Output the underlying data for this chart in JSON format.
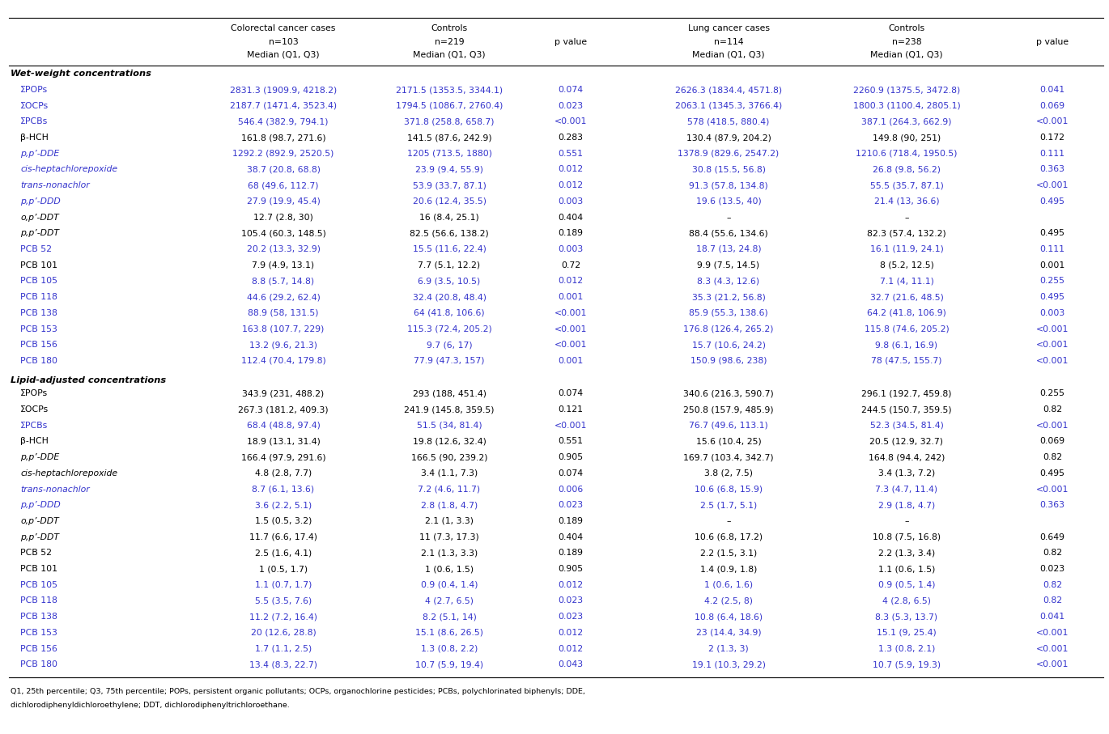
{
  "section1_header": "Wet-weight concentrations",
  "section2_header": "Lipid-adjusted concentrations",
  "col_headers": {
    "colorectal_line1": "Colorectal cancer cases",
    "colorectal_n": "n=103",
    "colorectal_median": "Median (Q1, Q3)",
    "controls1_line1": "Controls",
    "controls1_n": "n=219",
    "controls1_median": "Median (Q1, Q3)",
    "pval_header": "p value",
    "lung_line1": "Lung cancer cases",
    "lung_n": "n=114",
    "lung_median": "Median (Q1, Q3)",
    "controls2_line1": "Controls",
    "controls2_n": "n=238",
    "controls2_median": "Median (Q1, Q3)"
  },
  "rows_sec1": [
    {
      "label": "ΣPOPs",
      "italic": false,
      "color": "blue",
      "c1": "2831.3 (1909.9, 4218.2)",
      "c2": "2171.5 (1353.5, 3344.1)",
      "p1": "0.074",
      "c3": "2626.3 (1834.4, 4571.8)",
      "c4": "2260.9 (1375.5, 3472.8)",
      "p2": "0.041"
    },
    {
      "label": "ΣOCPs",
      "italic": false,
      "color": "blue",
      "c1": "2187.7 (1471.4, 3523.4)",
      "c2": "1794.5 (1086.7, 2760.4)",
      "p1": "0.023",
      "c3": "2063.1 (1345.3, 3766.4)",
      "c4": "1800.3 (1100.4, 2805.1)",
      "p2": "0.069"
    },
    {
      "label": "ΣPCBs",
      "italic": false,
      "color": "blue",
      "c1": "546.4 (382.9, 794.1)",
      "c2": "371.8 (258.8, 658.7)",
      "p1": "<0.001",
      "c3": "578 (418.5, 880.4)",
      "c4": "387.1 (264.3, 662.9)",
      "p2": "<0.001"
    },
    {
      "label": "β-HCH",
      "italic": false,
      "color": "black",
      "c1": "161.8 (98.7, 271.6)",
      "c2": "141.5 (87.6, 242.9)",
      "p1": "0.283",
      "c3": "130.4 (87.9, 204.2)",
      "c4": "149.8 (90, 251)",
      "p2": "0.172"
    },
    {
      "label": "p,p’-DDE",
      "italic": true,
      "color": "blue",
      "c1": "1292.2 (892.9, 2520.5)",
      "c2": "1205 (713.5, 1880)",
      "p1": "0.551",
      "c3": "1378.9 (829.6, 2547.2)",
      "c4": "1210.6 (718.4, 1950.5)",
      "p2": "0.111"
    },
    {
      "label": "cis-heptachlorepoxide",
      "italic": true,
      "color": "blue",
      "c1": "38.7 (20.8, 68.8)",
      "c2": "23.9 (9.4, 55.9)",
      "p1": "0.012",
      "c3": "30.8 (15.5, 56.8)",
      "c4": "26.8 (9.8, 56.2)",
      "p2": "0.363"
    },
    {
      "label": "trans-nonachlor",
      "italic": true,
      "color": "blue",
      "c1": "68 (49.6, 112.7)",
      "c2": "53.9 (33.7, 87.1)",
      "p1": "0.012",
      "c3": "91.3 (57.8, 134.8)",
      "c4": "55.5 (35.7, 87.1)",
      "p2": "<0.001"
    },
    {
      "label": "p,p’-DDD",
      "italic": true,
      "color": "blue",
      "c1": "27.9 (19.9, 45.4)",
      "c2": "20.6 (12.4, 35.5)",
      "p1": "0.003",
      "c3": "19.6 (13.5, 40)",
      "c4": "21.4 (13, 36.6)",
      "p2": "0.495"
    },
    {
      "label": "o,p’-DDT",
      "italic": true,
      "color": "black",
      "c1": "12.7 (2.8, 30)",
      "c2": "16 (8.4, 25.1)",
      "p1": "0.404",
      "c3": "–",
      "c4": "–",
      "p2": ""
    },
    {
      "label": "p,p’-DDT",
      "italic": true,
      "color": "black",
      "c1": "105.4 (60.3, 148.5)",
      "c2": "82.5 (56.6, 138.2)",
      "p1": "0.189",
      "c3": "88.4 (55.6, 134.6)",
      "c4": "82.3 (57.4, 132.2)",
      "p2": "0.495"
    },
    {
      "label": "PCB 52",
      "italic": false,
      "color": "blue",
      "c1": "20.2 (13.3, 32.9)",
      "c2": "15.5 (11.6, 22.4)",
      "p1": "0.003",
      "c3": "18.7 (13, 24.8)",
      "c4": "16.1 (11.9, 24.1)",
      "p2": "0.111"
    },
    {
      "label": "PCB 101",
      "italic": false,
      "color": "black",
      "c1": "7.9 (4.9, 13.1)",
      "c2": "7.7 (5.1, 12.2)",
      "p1": "0.72",
      "c3": "9.9 (7.5, 14.5)",
      "c4": "8 (5.2, 12.5)",
      "p2": "0.001"
    },
    {
      "label": "PCB 105",
      "italic": false,
      "color": "blue",
      "c1": "8.8 (5.7, 14.8)",
      "c2": "6.9 (3.5, 10.5)",
      "p1": "0.012",
      "c3": "8.3 (4.3, 12.6)",
      "c4": "7.1 (4, 11.1)",
      "p2": "0.255"
    },
    {
      "label": "PCB 118",
      "italic": false,
      "color": "blue",
      "c1": "44.6 (29.2, 62.4)",
      "c2": "32.4 (20.8, 48.4)",
      "p1": "0.001",
      "c3": "35.3 (21.2, 56.8)",
      "c4": "32.7 (21.6, 48.5)",
      "p2": "0.495"
    },
    {
      "label": "PCB 138",
      "italic": false,
      "color": "blue",
      "c1": "88.9 (58, 131.5)",
      "c2": "64 (41.8, 106.6)",
      "p1": "<0.001",
      "c3": "85.9 (55.3, 138.6)",
      "c4": "64.2 (41.8, 106.9)",
      "p2": "0.003"
    },
    {
      "label": "PCB 153",
      "italic": false,
      "color": "blue",
      "c1": "163.8 (107.7, 229)",
      "c2": "115.3 (72.4, 205.2)",
      "p1": "<0.001",
      "c3": "176.8 (126.4, 265.2)",
      "c4": "115.8 (74.6, 205.2)",
      "p2": "<0.001"
    },
    {
      "label": "PCB 156",
      "italic": false,
      "color": "blue",
      "c1": "13.2 (9.6, 21.3)",
      "c2": "9.7 (6, 17)",
      "p1": "<0.001",
      "c3": "15.7 (10.6, 24.2)",
      "c4": "9.8 (6.1, 16.9)",
      "p2": "<0.001"
    },
    {
      "label": "PCB 180",
      "italic": false,
      "color": "blue",
      "c1": "112.4 (70.4, 179.8)",
      "c2": "77.9 (47.3, 157)",
      "p1": "0.001",
      "c3": "150.9 (98.6, 238)",
      "c4": "78 (47.5, 155.7)",
      "p2": "<0.001"
    }
  ],
  "rows_sec2": [
    {
      "label": "ΣPOPs",
      "italic": false,
      "color": "black",
      "c1": "343.9 (231, 488.2)",
      "c2": "293 (188, 451.4)",
      "p1": "0.074",
      "c3": "340.6 (216.3, 590.7)",
      "c4": "296.1 (192.7, 459.8)",
      "p2": "0.255"
    },
    {
      "label": "ΣOCPs",
      "italic": false,
      "color": "black",
      "c1": "267.3 (181.2, 409.3)",
      "c2": "241.9 (145.8, 359.5)",
      "p1": "0.121",
      "c3": "250.8 (157.9, 485.9)",
      "c4": "244.5 (150.7, 359.5)",
      "p2": "0.82"
    },
    {
      "label": "ΣPCBs",
      "italic": false,
      "color": "blue",
      "c1": "68.4 (48.8, 97.4)",
      "c2": "51.5 (34, 81.4)",
      "p1": "<0.001",
      "c3": "76.7 (49.6, 113.1)",
      "c4": "52.3 (34.5, 81.4)",
      "p2": "<0.001"
    },
    {
      "label": "β-HCH",
      "italic": false,
      "color": "black",
      "c1": "18.9 (13.1, 31.4)",
      "c2": "19.8 (12.6, 32.4)",
      "p1": "0.551",
      "c3": "15.6 (10.4, 25)",
      "c4": "20.5 (12.9, 32.7)",
      "p2": "0.069"
    },
    {
      "label": "p,p’-DDE",
      "italic": true,
      "color": "black",
      "c1": "166.4 (97.9, 291.6)",
      "c2": "166.5 (90, 239.2)",
      "p1": "0.905",
      "c3": "169.7 (103.4, 342.7)",
      "c4": "164.8 (94.4, 242)",
      "p2": "0.82"
    },
    {
      "label": "cis-heptachlorepoxide",
      "italic": true,
      "color": "black",
      "c1": "4.8 (2.8, 7.7)",
      "c2": "3.4 (1.1, 7.3)",
      "p1": "0.074",
      "c3": "3.8 (2, 7.5)",
      "c4": "3.4 (1.3, 7.2)",
      "p2": "0.495"
    },
    {
      "label": "trans-nonachlor",
      "italic": true,
      "color": "blue",
      "c1": "8.7 (6.1, 13.6)",
      "c2": "7.2 (4.6, 11.7)",
      "p1": "0.006",
      "c3": "10.6 (6.8, 15.9)",
      "c4": "7.3 (4.7, 11.4)",
      "p2": "<0.001"
    },
    {
      "label": "p,p’-DDD",
      "italic": true,
      "color": "blue",
      "c1": "3.6 (2.2, 5.1)",
      "c2": "2.8 (1.8, 4.7)",
      "p1": "0.023",
      "c3": "2.5 (1.7, 5.1)",
      "c4": "2.9 (1.8, 4.7)",
      "p2": "0.363"
    },
    {
      "label": "o,p’-DDT",
      "italic": true,
      "color": "black",
      "c1": "1.5 (0.5, 3.2)",
      "c2": "2.1 (1, 3.3)",
      "p1": "0.189",
      "c3": "–",
      "c4": "–",
      "p2": ""
    },
    {
      "label": "p,p’-DDT",
      "italic": true,
      "color": "black",
      "c1": "11.7 (6.6, 17.4)",
      "c2": "11 (7.3, 17.3)",
      "p1": "0.404",
      "c3": "10.6 (6.8, 17.2)",
      "c4": "10.8 (7.5, 16.8)",
      "p2": "0.649"
    },
    {
      "label": "PCB 52",
      "italic": false,
      "color": "black",
      "c1": "2.5 (1.6, 4.1)",
      "c2": "2.1 (1.3, 3.3)",
      "p1": "0.189",
      "c3": "2.2 (1.5, 3.1)",
      "c4": "2.2 (1.3, 3.4)",
      "p2": "0.82"
    },
    {
      "label": "PCB 101",
      "italic": false,
      "color": "black",
      "c1": "1 (0.5, 1.7)",
      "c2": "1 (0.6, 1.5)",
      "p1": "0.905",
      "c3": "1.4 (0.9, 1.8)",
      "c4": "1.1 (0.6, 1.5)",
      "p2": "0.023"
    },
    {
      "label": "PCB 105",
      "italic": false,
      "color": "blue",
      "c1": "1.1 (0.7, 1.7)",
      "c2": "0.9 (0.4, 1.4)",
      "p1": "0.012",
      "c3": "1 (0.6, 1.6)",
      "c4": "0.9 (0.5, 1.4)",
      "p2": "0.82"
    },
    {
      "label": "PCB 118",
      "italic": false,
      "color": "blue",
      "c1": "5.5 (3.5, 7.6)",
      "c2": "4 (2.7, 6.5)",
      "p1": "0.023",
      "c3": "4.2 (2.5, 8)",
      "c4": "4 (2.8, 6.5)",
      "p2": "0.82"
    },
    {
      "label": "PCB 138",
      "italic": false,
      "color": "blue",
      "c1": "11.2 (7.2, 16.4)",
      "c2": "8.2 (5.1, 14)",
      "p1": "0.023",
      "c3": "10.8 (6.4, 18.6)",
      "c4": "8.3 (5.3, 13.7)",
      "p2": "0.041"
    },
    {
      "label": "PCB 153",
      "italic": false,
      "color": "blue",
      "c1": "20 (12.6, 28.8)",
      "c2": "15.1 (8.6, 26.5)",
      "p1": "0.012",
      "c3": "23 (14.4, 34.9)",
      "c4": "15.1 (9, 25.4)",
      "p2": "<0.001"
    },
    {
      "label": "PCB 156",
      "italic": false,
      "color": "blue",
      "c1": "1.7 (1.1, 2.5)",
      "c2": "1.3 (0.8, 2.2)",
      "p1": "0.012",
      "c3": "2 (1.3, 3)",
      "c4": "1.3 (0.8, 2.1)",
      "p2": "<0.001"
    },
    {
      "label": "PCB 180",
      "italic": false,
      "color": "blue",
      "c1": "13.4 (8.3, 22.7)",
      "c2": "10.7 (5.9, 19.4)",
      "p1": "0.043",
      "c3": "19.1 (10.3, 29.2)",
      "c4": "10.7 (5.9, 19.3)",
      "p2": "<0.001"
    }
  ],
  "footnote_line1": "Q1, 25th percentile; Q3, 75th percentile; POPs, persistent organic pollutants; OCPs, organochlorine pesticides; PCBs, polychlorinated biphenyls; DDE,",
  "footnote_line2": "dichlorodiphenyldichloroethylene; DDT, dichlorodiphenyltrichloroethane.",
  "blue_color": "#3333cc",
  "black_color": "#000000",
  "line_color": "#000000"
}
